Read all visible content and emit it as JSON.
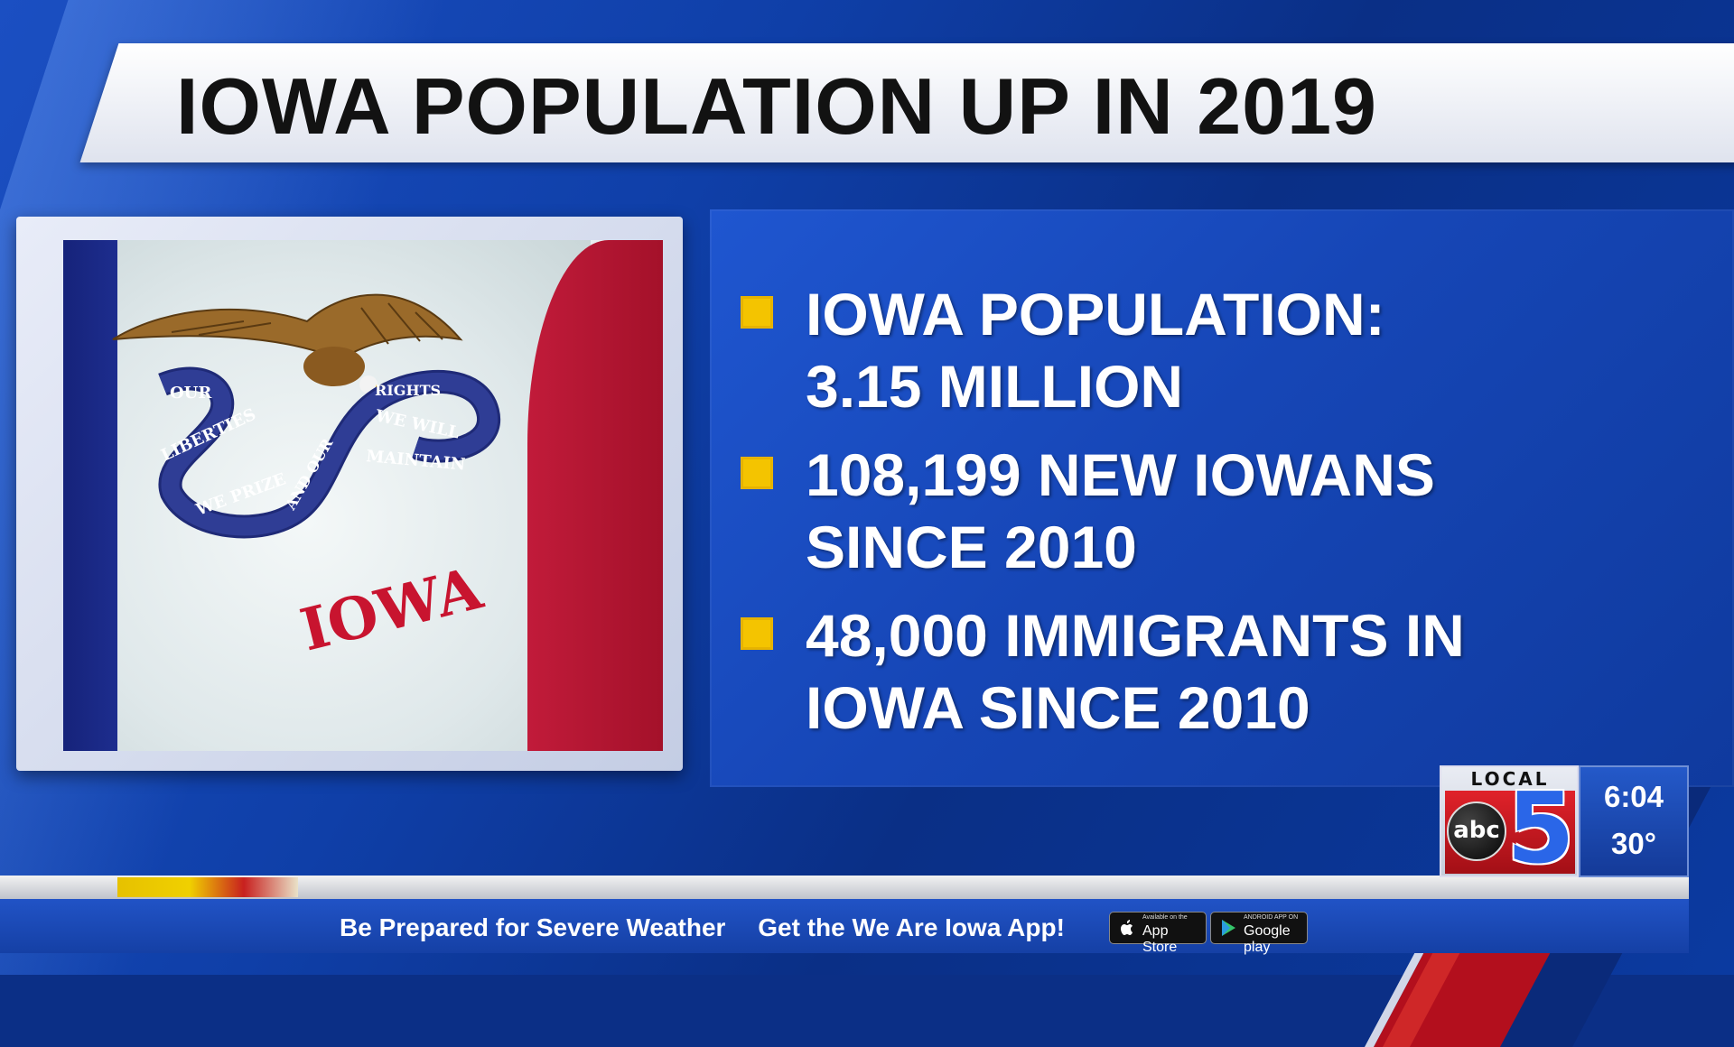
{
  "title": "IOWA POPULATION UP IN 2019",
  "flag": {
    "ribbon_text_left": [
      "OUR",
      "LIBERTIES",
      "WE PRIZE",
      "AND OUR"
    ],
    "ribbon_text_right": [
      "RIGHTS",
      "WE WILL",
      "MAINTAIN"
    ],
    "name": "IOWA",
    "colors": {
      "blue": "#1d2d8e",
      "white": "#e8eef0",
      "red": "#b3152f"
    }
  },
  "bullets": [
    {
      "lines": [
        "IOWA POPULATION:",
        "3.15 MILLION"
      ]
    },
    {
      "lines": [
        "108,199 NEW IOWANS",
        "SINCE 2010"
      ]
    },
    {
      "lines": [
        "48,000 IMMIGRANTS IN",
        "IOWA SINCE 2010"
      ]
    }
  ],
  "ticker": {
    "text1": "Be Prepared for Severe Weather",
    "text2": "Get the We Are Iowa App!",
    "app_store_small": "Available on the",
    "app_store_big": "App Store",
    "google_small": "ANDROID APP ON",
    "google_big": "Google play"
  },
  "station": {
    "local": "LOCAL",
    "network": "abc",
    "channel": "5",
    "time": "6:04",
    "temp": "30°"
  },
  "colors": {
    "accent_yellow": "#f4c400",
    "panel_blue": "#1646b6",
    "brand_red": "#c8201f"
  }
}
